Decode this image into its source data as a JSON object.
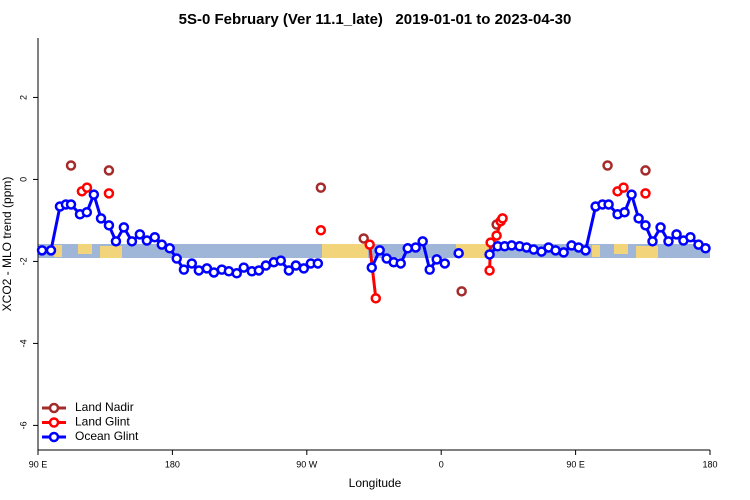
{
  "chart_data": {
    "type": "scatter",
    "title": "5S-0 February (Ver 11.1_late)   2019-01-01 to 2023-04-30",
    "x_label": "Longitude",
    "y_label": "XCO2 - MLO trend (ppm)",
    "xlim": [
      90,
      540
    ],
    "xticks": [
      {
        "value": 90,
        "label": "90 E"
      },
      180,
      {
        "value": 270,
        "label": "90 W"
      },
      {
        "value": 360,
        "label": "0"
      },
      {
        "value": 450,
        "label": "90 E"
      },
      {
        "value": 540,
        "label": "180"
      }
    ],
    "ylim": [
      -6.6,
      3.45
    ],
    "yticks": [
      -6,
      -4,
      -2,
      0,
      2
    ],
    "legend": "bottom-left",
    "series": [
      {
        "name": "Land Nadir",
        "color": "#a52a2a",
        "x": [
          112.1,
          null,
          137.5,
          null,
          279.4,
          null,
          308.1,
          null,
          373.7,
          null,
          397.1,
          null,
          471.4,
          null,
          496.8
        ],
        "values": [
          0.34,
          null,
          0.22,
          null,
          -0.2,
          null,
          -1.44,
          null,
          -2.73,
          null,
          -1.1,
          null,
          0.34,
          null,
          0.22
        ]
      },
      {
        "name": "Land Glint",
        "color": "#ff0000",
        "x": [
          119.4,
          122.8,
          null,
          137.5,
          null,
          279.4,
          null,
          312.1,
          316.2,
          null,
          392.4,
          393.1,
          397.1,
          399.8,
          401.1,
          null,
          478.1,
          482.1,
          null,
          496.8
        ],
        "values": [
          -0.29,
          -0.2,
          null,
          -0.34,
          null,
          -1.24,
          null,
          -1.59,
          -2.9,
          null,
          -2.22,
          -1.54,
          -1.37,
          -1.02,
          -0.95,
          null,
          -0.29,
          -0.2,
          null,
          -0.34
        ]
      },
      {
        "name": "Ocean Glint",
        "color": "#0000ff",
        "x": [
          92.7,
          98.7,
          104.7,
          108.7,
          112.1,
          118.1,
          122.7,
          127.4,
          132.2,
          137.5,
          142.2,
          147.5,
          152.9,
          158.2,
          162.9,
          168.2,
          172.9,
          178.2,
          182.9,
          187.7,
          193.0,
          197.7,
          203.1,
          207.8,
          213.1,
          217.8,
          223.1,
          227.8,
          233.2,
          237.9,
          242.6,
          247.9,
          252.6,
          258.0,
          262.7,
          268.0,
          272.7,
          277.4,
          null,
          313.5,
          318.8,
          323.5,
          328.2,
          332.9,
          337.6,
          342.9,
          347.6,
          352.3,
          357.0,
          362.4,
          null,
          371.7,
          null,
          392.4,
          397.8,
          402.5,
          407.2,
          412.5,
          417.2,
          421.9,
          427.2,
          431.9,
          436.6,
          442.0,
          447.3,
          452.0,
          456.7,
          463.4,
          468.0,
          472.1,
          478.1,
          482.8,
          487.5,
          492.2,
          496.8,
          501.5,
          506.9,
          512.2,
          517.6,
          522.2,
          526.9,
          532.3,
          537.0
        ],
        "values": [
          -1.73,
          -1.73,
          -0.66,
          -0.61,
          -0.61,
          -0.85,
          -0.8,
          -0.37,
          -0.95,
          -1.12,
          -1.51,
          -1.17,
          -1.51,
          -1.34,
          -1.49,
          -1.41,
          -1.59,
          -1.68,
          -1.93,
          -2.2,
          -2.05,
          -2.22,
          -2.17,
          -2.27,
          -2.2,
          -2.24,
          -2.29,
          -2.15,
          -2.24,
          -2.22,
          -2.1,
          -2.02,
          -1.98,
          -2.22,
          -2.1,
          -2.17,
          -2.05,
          -2.05,
          null,
          -2.15,
          -1.73,
          -1.93,
          -2.02,
          -2.05,
          -1.68,
          -1.66,
          -1.51,
          -2.2,
          -1.95,
          -2.05,
          null,
          -1.8,
          null,
          -1.83,
          -1.63,
          -1.63,
          -1.61,
          -1.63,
          -1.66,
          -1.71,
          -1.76,
          -1.66,
          -1.73,
          -1.78,
          -1.61,
          -1.66,
          -1.73,
          -0.66,
          -0.61,
          -0.61,
          -0.85,
          -0.8,
          -0.37,
          -0.95,
          -1.12,
          -1.51,
          -1.17,
          -1.51,
          -1.34,
          -1.49,
          -1.41,
          -1.59,
          -1.68
        ]
      }
    ]
  }
}
